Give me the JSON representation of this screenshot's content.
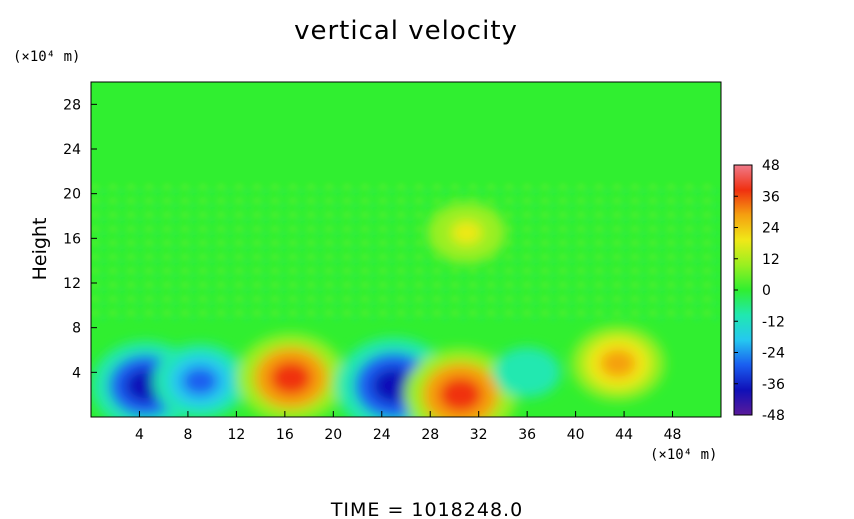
{
  "chart_data": {
    "type": "heatmap",
    "title": "vertical velocity",
    "xlabel": "",
    "ylabel": "Height",
    "x_unit": "(×10⁴ m)",
    "y_unit": "(×10⁴ m)",
    "xlim": [
      0,
      52
    ],
    "ylim": [
      0,
      30
    ],
    "x_ticks": [
      4,
      8,
      12,
      16,
      20,
      24,
      28,
      32,
      36,
      40,
      44,
      48
    ],
    "y_ticks": [
      4,
      8,
      12,
      16,
      20,
      24,
      28
    ],
    "colorbar": {
      "ticks": [
        48,
        36,
        24,
        12,
        0,
        -12,
        -24,
        -36,
        -48
      ],
      "range": [
        -48,
        48
      ],
      "stops": [
        "#5a1a9a",
        "#1010b8",
        "#1a5ef0",
        "#25c8f0",
        "#20e8b0",
        "#30ef30",
        "#9aef20",
        "#f0e818",
        "#f5a010",
        "#f03010",
        "#f07a8a"
      ]
    },
    "features": [
      {
        "x": 4.5,
        "y": 2.8,
        "value": -36
      },
      {
        "x": 9.0,
        "y": 3.2,
        "value": -28
      },
      {
        "x": 16.5,
        "y": 3.5,
        "value": 36
      },
      {
        "x": 25.0,
        "y": 2.8,
        "value": -40
      },
      {
        "x": 30.5,
        "y": 2.0,
        "value": 38
      },
      {
        "x": 36.0,
        "y": 4.0,
        "value": -14
      },
      {
        "x": 43.5,
        "y": 4.8,
        "value": 28
      },
      {
        "x": 31.0,
        "y": 16.5,
        "value": 20
      }
    ],
    "background_value": 0,
    "footer": "TIME  =  1018248.0"
  }
}
